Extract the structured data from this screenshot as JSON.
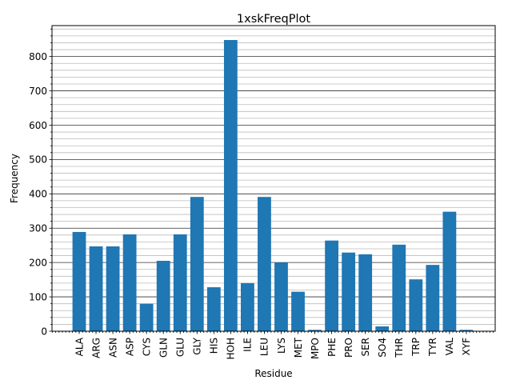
{
  "chart_data": {
    "type": "bar",
    "title": "1xskFreqPlot",
    "xlabel": "Residue",
    "ylabel": "Frequency",
    "categories": [
      "ALA",
      "ARG",
      "ASN",
      "ASP",
      "CYS",
      "GLN",
      "GLU",
      "GLY",
      "HIS",
      "HOH",
      "ILE",
      "LEU",
      "LYS",
      "MET",
      "MPO",
      "PHE",
      "PRO",
      "SER",
      "SO4",
      "THR",
      "TRP",
      "TYR",
      "VAL",
      "XYF"
    ],
    "values": [
      289,
      247,
      247,
      282,
      80,
      205,
      282,
      391,
      128,
      848,
      140,
      391,
      200,
      115,
      4,
      264,
      229,
      224,
      14,
      252,
      151,
      193,
      348,
      4
    ],
    "ylim": [
      0,
      890
    ],
    "yticks": [
      0,
      100,
      200,
      300,
      400,
      500,
      600,
      700,
      800
    ],
    "grid": {
      "major": true,
      "minor": true
    },
    "bar_color": "#1f77b4",
    "major_grid_color": "#333333",
    "minor_grid_color": "#bbbbbb"
  }
}
